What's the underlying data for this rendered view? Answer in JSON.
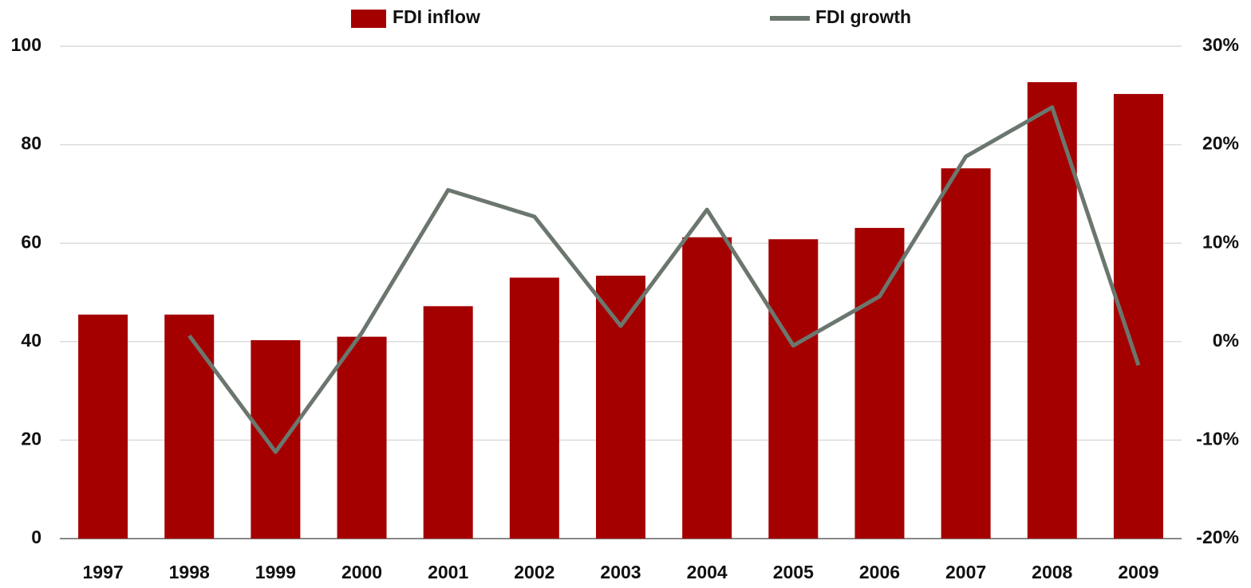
{
  "chart_data": {
    "type": "bar",
    "categories": [
      "1997",
      "1998",
      "1999",
      "2000",
      "2001",
      "2002",
      "2003",
      "2004",
      "2005",
      "2006",
      "2007",
      "2008",
      "2009"
    ],
    "series": [
      {
        "name": "FDI inflow",
        "type": "bar",
        "color": "#a50000",
        "values": [
          45.5,
          45.5,
          40.3,
          41,
          47.2,
          53,
          53.4,
          61.2,
          60.8,
          63.1,
          75.2,
          92.7,
          90.3
        ]
      },
      {
        "name": "FDI growth",
        "type": "line",
        "axis": "y2",
        "color": "#6b776e",
        "values": [
          null,
          0.6,
          -11.2,
          0.9,
          15.4,
          12.7,
          1.6,
          13.4,
          -0.4,
          4.6,
          18.8,
          23.8,
          -2.4
        ]
      }
    ],
    "ylim": [
      0,
      100
    ],
    "yticks": [
      0,
      20,
      40,
      60,
      80,
      100
    ],
    "y2lim": [
      -20,
      30
    ],
    "y2ticks": [
      {
        "value": -20,
        "label": "-20%"
      },
      {
        "value": -10,
        "label": "-10%"
      },
      {
        "value": 0,
        "label": "0%"
      },
      {
        "value": 10,
        "label": "10%"
      },
      {
        "value": 20,
        "label": "20%"
      },
      {
        "value": 30,
        "label": "30%"
      }
    ],
    "grid": true,
    "legend": "top"
  }
}
